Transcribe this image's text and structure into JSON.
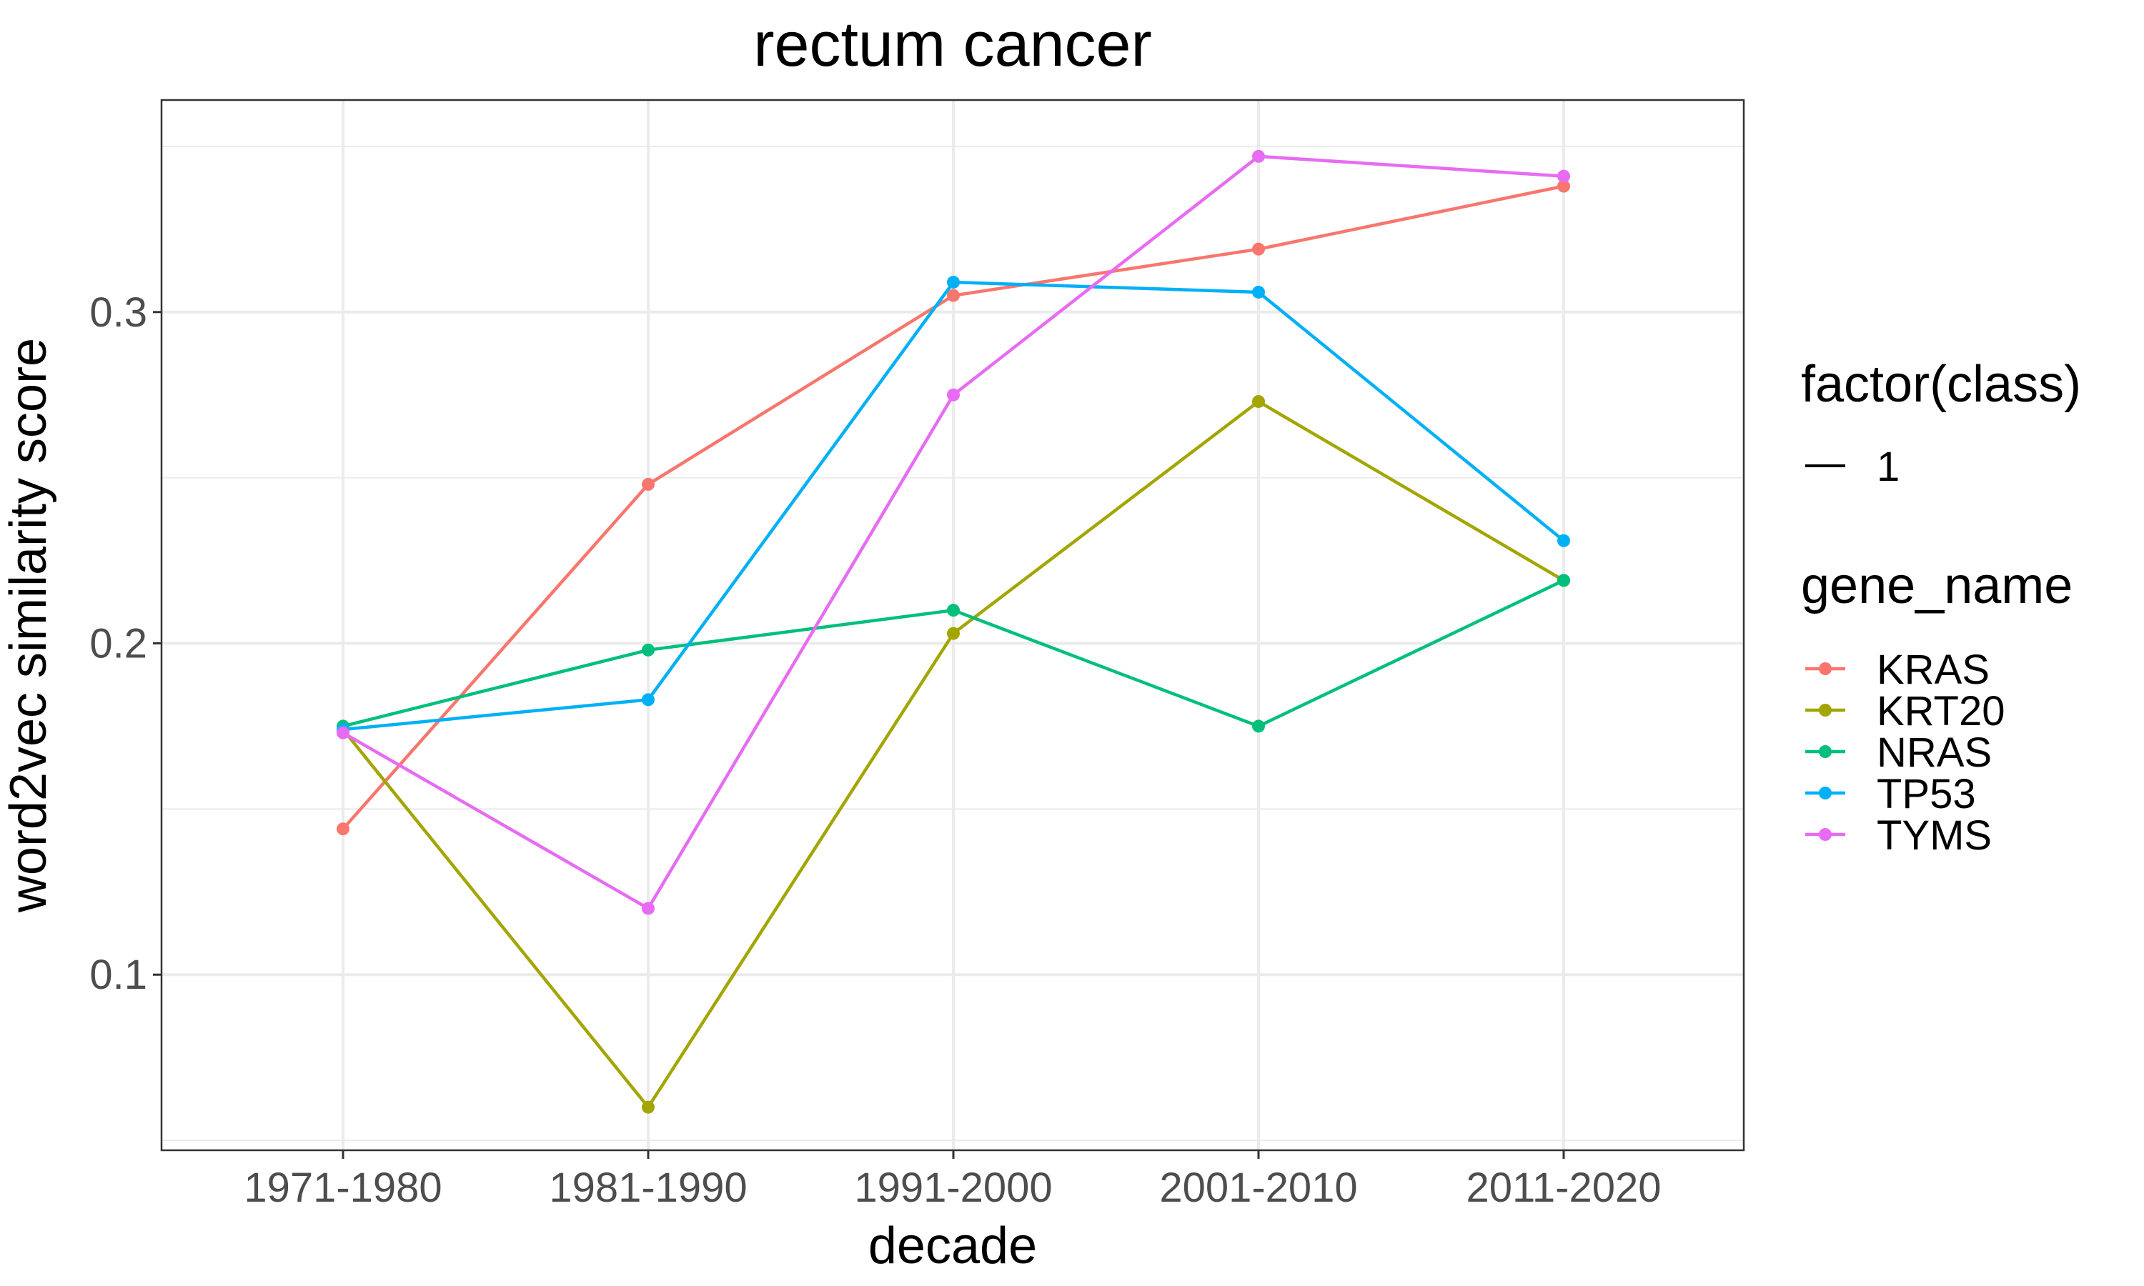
{
  "chart_data": {
    "type": "line",
    "title": "rectum cancer",
    "xlabel": "decade",
    "ylabel": "word2vec similarity score",
    "categories": [
      "1971-1980",
      "1981-1990",
      "1991-2000",
      "2001-2010",
      "2011-2020"
    ],
    "y_ticks": [
      0.1,
      0.2,
      0.3
    ],
    "y_tick_labels": [
      "0.1",
      "0.2",
      "0.3"
    ],
    "ylim": [
      0.047,
      0.364
    ],
    "grid": true,
    "legend_position": "right",
    "legends": [
      {
        "title": "factor(class)",
        "entries": [
          {
            "label": "1",
            "shape": "line",
            "color": "#000000"
          }
        ]
      },
      {
        "title": "gene_name",
        "entries": [
          {
            "label": "KRAS",
            "color": "#F8766D"
          },
          {
            "label": "KRT20",
            "color": "#A3A500"
          },
          {
            "label": "NRAS",
            "color": "#00BF7D"
          },
          {
            "label": "TP53",
            "color": "#00B0F6"
          },
          {
            "label": "TYMS",
            "color": "#E76BF3"
          }
        ]
      }
    ],
    "series": [
      {
        "name": "KRAS",
        "color": "#F8766D",
        "values": [
          0.144,
          0.248,
          0.305,
          0.319,
          0.338
        ]
      },
      {
        "name": "KRT20",
        "color": "#A3A500",
        "values": [
          0.174,
          0.06,
          0.203,
          0.273,
          0.219
        ]
      },
      {
        "name": "NRAS",
        "color": "#00BF7D",
        "values": [
          0.175,
          0.198,
          0.21,
          0.175,
          0.219
        ]
      },
      {
        "name": "TP53",
        "color": "#00B0F6",
        "values": [
          0.174,
          0.183,
          0.309,
          0.306,
          0.231
        ]
      },
      {
        "name": "TYMS",
        "color": "#E76BF3",
        "values": [
          0.173,
          0.12,
          0.275,
          0.347,
          0.341
        ]
      }
    ]
  }
}
